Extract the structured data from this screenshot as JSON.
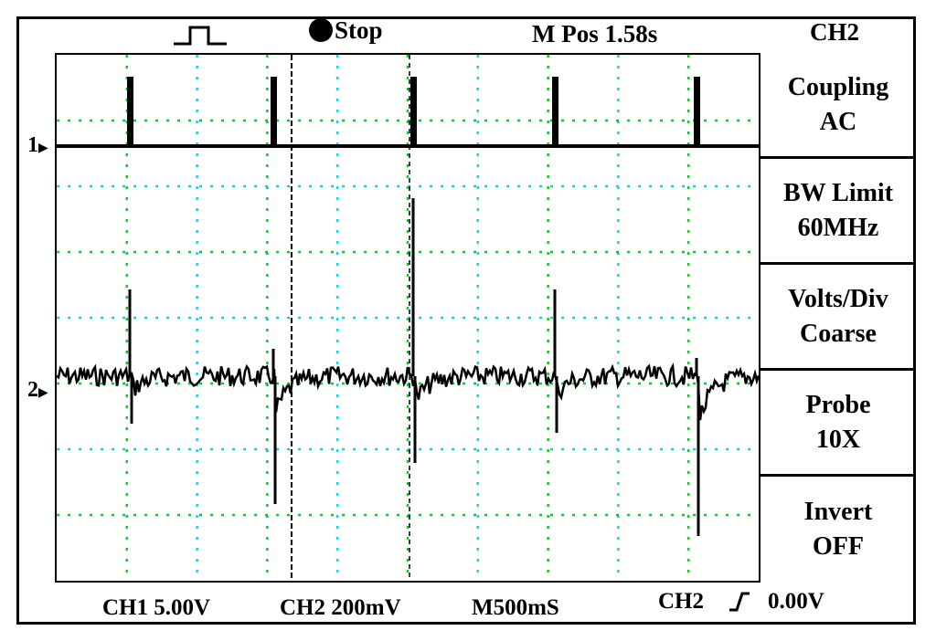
{
  "header": {
    "trigger_icon": "square-pulse-icon",
    "status_label": "Stop",
    "mpos_label": "M Pos 1.58s",
    "channel_title": "CH2"
  },
  "menu": {
    "items": [
      {
        "title": "Coupling",
        "value": "AC"
      },
      {
        "title": "BW Limit",
        "value": "60MHz"
      },
      {
        "title": "Volts/Div",
        "value": "Coarse"
      },
      {
        "title": "Probe",
        "value": "10X"
      },
      {
        "title": "Invert",
        "value": "OFF"
      }
    ]
  },
  "markers": {
    "ch1": "1",
    "ch2": "2"
  },
  "footer": {
    "ch1_scale": "CH1 5.00V",
    "ch2_scale": "CH2 200mV",
    "timebase": "M500mS",
    "trigger_source": "CH2",
    "trigger_level": "0.00V"
  },
  "colors": {
    "trace": "#000000",
    "grid": "#1fbf3a",
    "grid_alt": "#33c7d6"
  }
}
